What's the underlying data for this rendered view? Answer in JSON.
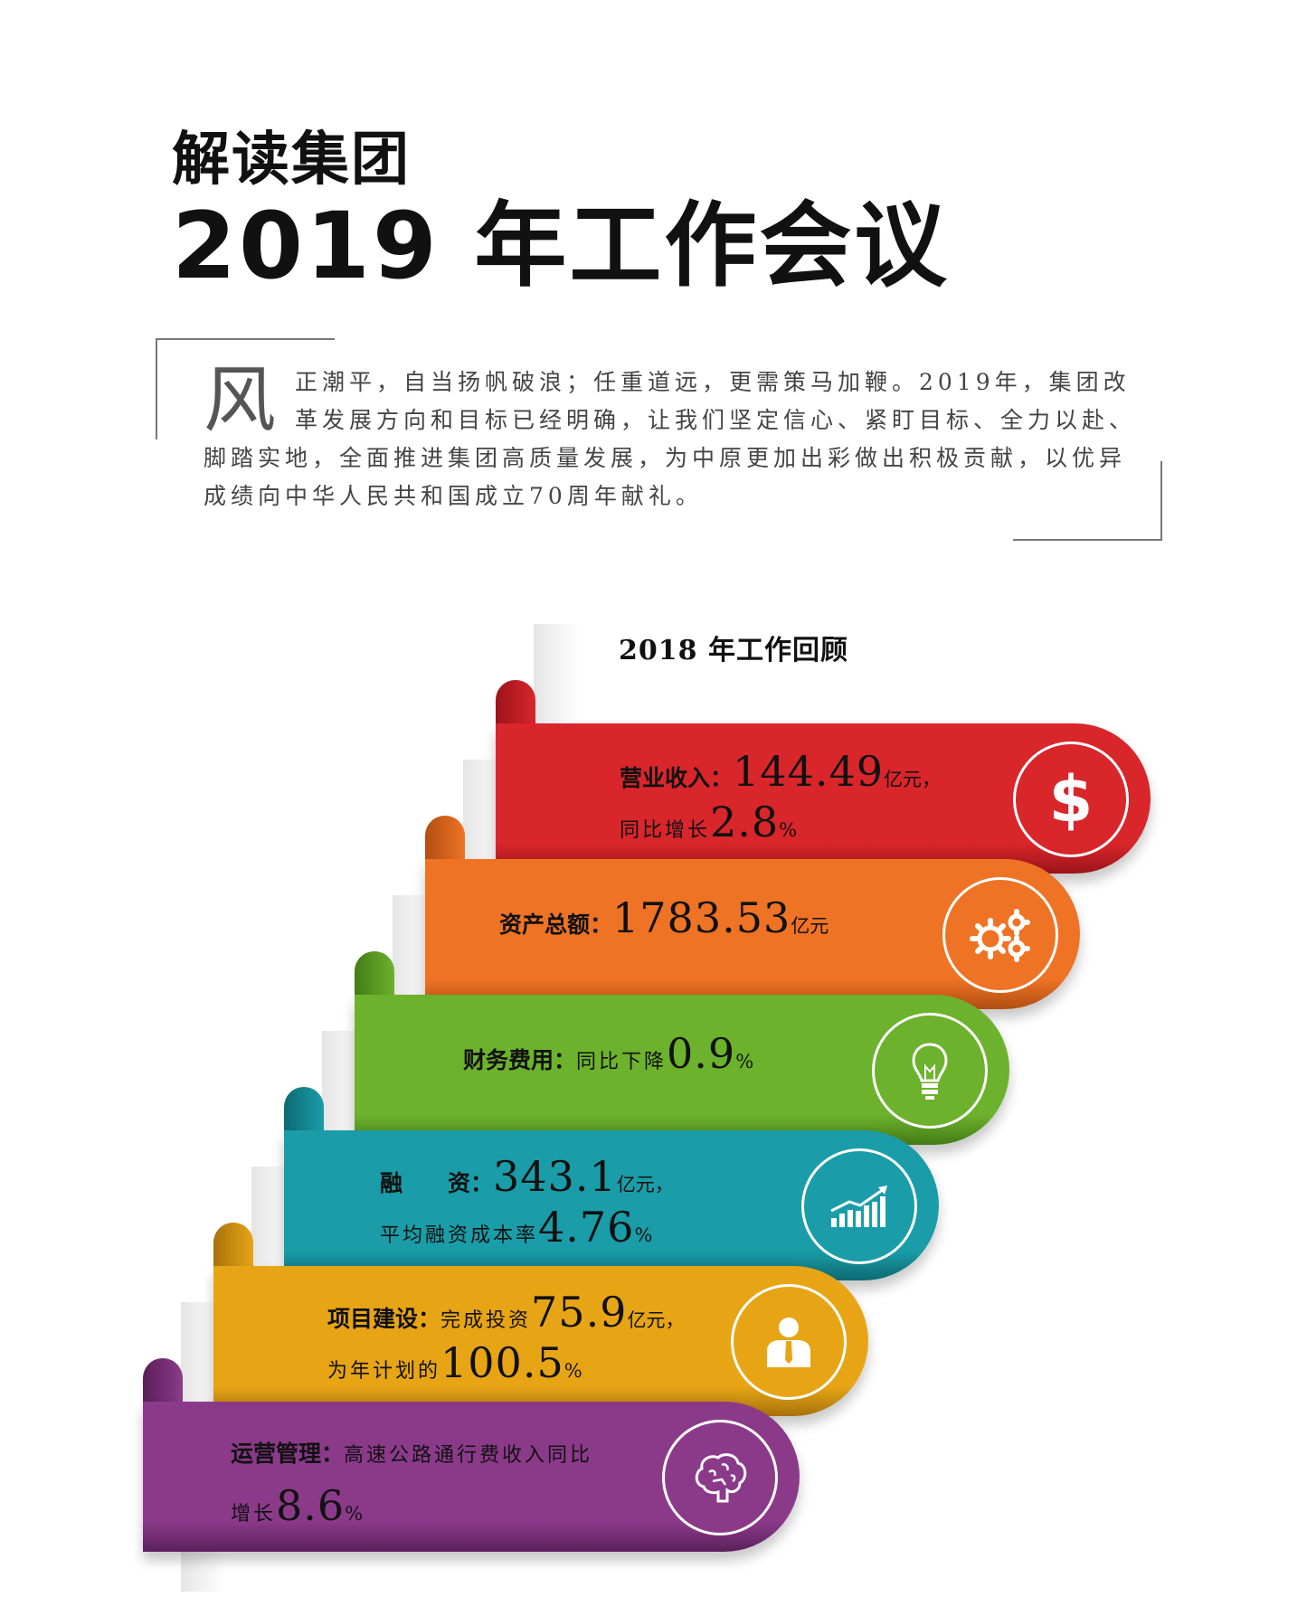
{
  "header": {
    "title_line1": "解读集团",
    "title_line2": "2019 年工作会议"
  },
  "intro": {
    "dropcap": "风",
    "text": "正潮平，自当扬帆破浪；任重道远，更需策马加鞭。2019年，集团改革发展方向和目标已经明确，让我们坚定信心、紧盯目标、全力以赴、脚踏实地，全面推进集团高质量发展，为中原更加出彩做出积极贡献，以优异成绩向中华人民共和国成立70周年献礼。"
  },
  "review": {
    "title": "2018 年工作回顾",
    "items": [
      {
        "label": "营业收入：",
        "value": "144.49",
        "unit": "亿元，",
        "line2_text": "同比增长",
        "line2_value": "2.8",
        "line2_unit": "%",
        "icon": "dollar-icon",
        "color": "#d8262b",
        "dark": "#9c1419"
      },
      {
        "label": "资产总额：",
        "value": "1783.53",
        "unit": "亿元",
        "icon": "gears-icon",
        "color": "#ee7325",
        "dark": "#b24e12"
      },
      {
        "label": "财务费用：",
        "pre": "同比下降",
        "value": "0.9",
        "unit": "%",
        "icon": "lightbulb-icon",
        "color": "#6cb22c",
        "dark": "#447b16"
      },
      {
        "label": "融　　资：",
        "value": "343.1",
        "unit": "亿元，",
        "line2_text": "平均融资成本率",
        "line2_value": "4.76",
        "line2_unit": "%",
        "icon": "bar-chart-icon",
        "color": "#1a9da8",
        "dark": "#0d6a73"
      },
      {
        "label": "项目建设：",
        "pre": "完成投资",
        "value": "75.9",
        "unit": "亿元，",
        "line2_text": "为年计划的",
        "line2_value": "100.5",
        "line2_unit": "%",
        "icon": "person-icon",
        "color": "#e7a516",
        "dark": "#a7720a"
      },
      {
        "label": "运营管理：",
        "pre": "高速公路通行费收入同比",
        "line2_text": "增长",
        "line2_value": "8.6",
        "line2_unit": "%",
        "icon": "brain-icon",
        "color": "#8b3a8a",
        "dark": "#5b1f5a"
      }
    ]
  }
}
